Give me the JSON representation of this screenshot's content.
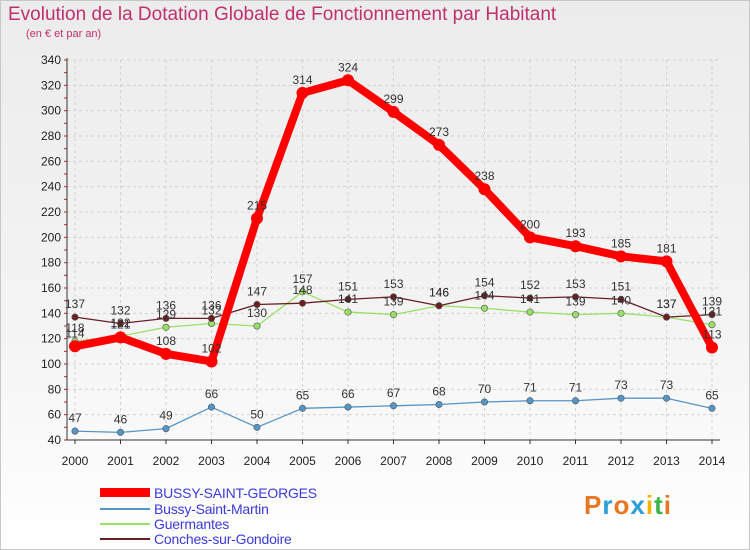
{
  "header": {
    "title": "Evolution de la Dotation Globale de Fonctionnement par Habitant",
    "subtitle": "(en € et par an)"
  },
  "logo": {
    "text": "Proxiti",
    "colors": [
      "#e87722",
      "#2a9fd8",
      "#e87722",
      "#2a9fd8",
      "#f0b400",
      "#3bb54a",
      "#e87722"
    ]
  },
  "colors": {
    "bussy_saint_georges": "#ff0000",
    "bussy_saint_martin": "#5596c8",
    "guermantes": "#99e066",
    "conches_sur_gondoire": "#6b1f24",
    "axis_text": "#222222",
    "grid": "#d2d2d2"
  },
  "chart_data": {
    "type": "line",
    "title": "Evolution de la Dotation Globale de Fonctionnement par Habitant",
    "subtitle": "(en € et par an)",
    "xlabel": "",
    "ylabel": "",
    "ylim": [
      40,
      340
    ],
    "yticks": [
      40,
      60,
      80,
      100,
      120,
      140,
      160,
      180,
      200,
      220,
      240,
      260,
      280,
      300,
      320,
      340
    ],
    "categories": [
      "2000",
      "2001",
      "2002",
      "2003",
      "2004",
      "2005",
      "2006",
      "2007",
      "2008",
      "2009",
      "2010",
      "2011",
      "2012",
      "2013",
      "2014"
    ],
    "grid": true,
    "legend_position": "bottom-left",
    "series": [
      {
        "name": "Bussy-Saint-Martin",
        "key": "bussy_saint_martin",
        "values": [
          47,
          46,
          49,
          66,
          50,
          65,
          66,
          67,
          68,
          70,
          71,
          71,
          73,
          73,
          65
        ],
        "labels": [
          "47",
          "46",
          "49",
          "66",
          "50",
          "65",
          "66",
          "67",
          "68",
          "70",
          "71",
          "71",
          "73",
          "73",
          "65"
        ]
      },
      {
        "name": "Guermantes",
        "key": "guermantes",
        "values": [
          118,
          122,
          129,
          132,
          130,
          157,
          141,
          139,
          146,
          144,
          141,
          139,
          140,
          137,
          131
        ],
        "labels": [
          "118",
          "122",
          "129",
          "132",
          "130",
          "157",
          "141",
          "139",
          "146",
          "144",
          "141",
          "139",
          "140",
          "137",
          "131"
        ]
      },
      {
        "name": "Conches-sur-Gondoire",
        "key": "conches_sur_gondoire",
        "values": [
          137,
          132,
          136,
          136,
          147,
          148,
          151,
          153,
          146,
          154,
          152,
          153,
          151,
          137,
          139
        ],
        "labels": [
          "137",
          "132",
          "136",
          "136",
          "147",
          "148",
          "151",
          "153",
          "146",
          "154",
          "152",
          "153",
          "151",
          "137",
          "139"
        ]
      },
      {
        "name": "BUSSY-SAINT-GEORGES",
        "key": "bussy_saint_georges",
        "values": [
          114,
          121,
          108,
          102,
          215,
          314,
          324,
          299,
          273,
          238,
          200,
          193,
          185,
          181,
          113
        ],
        "labels": [
          "114",
          "121",
          "108",
          "102",
          "215",
          "314",
          "324",
          "299",
          "273",
          "238",
          "200",
          "193",
          "185",
          "181",
          "113"
        ]
      }
    ]
  },
  "legend": {
    "items": [
      {
        "label": "BUSSY-SAINT-GEORGES",
        "key": "bussy_saint_georges"
      },
      {
        "label": "Bussy-Saint-Martin",
        "key": "bussy_saint_martin"
      },
      {
        "label": "Guermantes",
        "key": "guermantes"
      },
      {
        "label": "Conches-sur-Gondoire",
        "key": "conches_sur_gondoire"
      }
    ]
  }
}
